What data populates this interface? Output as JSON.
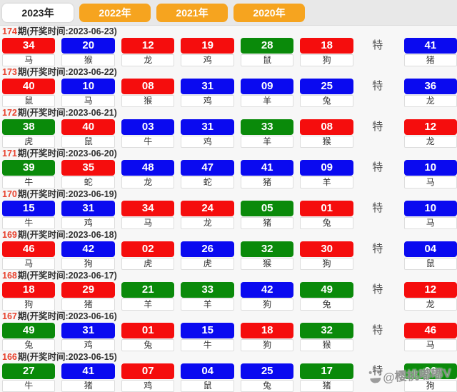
{
  "tabs": [
    {
      "label": "2023年",
      "active": true
    },
    {
      "label": "2022年",
      "active": false
    },
    {
      "label": "2021年",
      "active": false
    },
    {
      "label": "2020年",
      "active": false
    }
  ],
  "special_label": "特",
  "watermark": {
    "handle": "@樱桃嘟嘟V",
    "icon": "paw-icon"
  },
  "colors": {
    "red": "#f50d0d",
    "blue": "#0a0af0",
    "green": "#0a8a0a",
    "tab_orange": "#f6a41f",
    "period_red": "#e8432f"
  },
  "rows": [
    {
      "period": "174",
      "suffix": "期(开奖时间:2023-06-23)",
      "numbers": [
        {
          "num": "34",
          "zodiac": "马",
          "color": "red"
        },
        {
          "num": "20",
          "zodiac": "猴",
          "color": "blue"
        },
        {
          "num": "12",
          "zodiac": "龙",
          "color": "red"
        },
        {
          "num": "19",
          "zodiac": "鸡",
          "color": "red"
        },
        {
          "num": "28",
          "zodiac": "鼠",
          "color": "green"
        },
        {
          "num": "18",
          "zodiac": "狗",
          "color": "red"
        }
      ],
      "special": {
        "num": "41",
        "zodiac": "猪",
        "color": "blue"
      }
    },
    {
      "period": "173",
      "suffix": "期(开奖时间:2023-06-22)",
      "numbers": [
        {
          "num": "40",
          "zodiac": "鼠",
          "color": "red"
        },
        {
          "num": "10",
          "zodiac": "马",
          "color": "blue"
        },
        {
          "num": "08",
          "zodiac": "猴",
          "color": "red"
        },
        {
          "num": "31",
          "zodiac": "鸡",
          "color": "blue"
        },
        {
          "num": "09",
          "zodiac": "羊",
          "color": "blue"
        },
        {
          "num": "25",
          "zodiac": "兔",
          "color": "blue"
        }
      ],
      "special": {
        "num": "36",
        "zodiac": "龙",
        "color": "blue"
      }
    },
    {
      "period": "172",
      "suffix": "期(开奖时间:2023-06-21)",
      "numbers": [
        {
          "num": "38",
          "zodiac": "虎",
          "color": "green"
        },
        {
          "num": "40",
          "zodiac": "鼠",
          "color": "red"
        },
        {
          "num": "03",
          "zodiac": "牛",
          "color": "blue"
        },
        {
          "num": "31",
          "zodiac": "鸡",
          "color": "blue"
        },
        {
          "num": "33",
          "zodiac": "羊",
          "color": "green"
        },
        {
          "num": "08",
          "zodiac": "猴",
          "color": "red"
        }
      ],
      "special": {
        "num": "12",
        "zodiac": "龙",
        "color": "red"
      }
    },
    {
      "period": "171",
      "suffix": "期(开奖时间:2023-06-20)",
      "numbers": [
        {
          "num": "39",
          "zodiac": "牛",
          "color": "green"
        },
        {
          "num": "35",
          "zodiac": "蛇",
          "color": "red"
        },
        {
          "num": "48",
          "zodiac": "龙",
          "color": "blue"
        },
        {
          "num": "47",
          "zodiac": "蛇",
          "color": "blue"
        },
        {
          "num": "41",
          "zodiac": "猪",
          "color": "blue"
        },
        {
          "num": "09",
          "zodiac": "羊",
          "color": "blue"
        }
      ],
      "special": {
        "num": "10",
        "zodiac": "马",
        "color": "blue"
      }
    },
    {
      "period": "170",
      "suffix": "期(开奖时间:2023-06-19)",
      "numbers": [
        {
          "num": "15",
          "zodiac": "牛",
          "color": "blue"
        },
        {
          "num": "31",
          "zodiac": "鸡",
          "color": "blue"
        },
        {
          "num": "34",
          "zodiac": "马",
          "color": "red"
        },
        {
          "num": "24",
          "zodiac": "龙",
          "color": "red"
        },
        {
          "num": "05",
          "zodiac": "猪",
          "color": "green"
        },
        {
          "num": "01",
          "zodiac": "兔",
          "color": "red"
        }
      ],
      "special": {
        "num": "10",
        "zodiac": "马",
        "color": "blue"
      }
    },
    {
      "period": "169",
      "suffix": "期(开奖时间:2023-06-18)",
      "numbers": [
        {
          "num": "46",
          "zodiac": "马",
          "color": "red"
        },
        {
          "num": "42",
          "zodiac": "狗",
          "color": "blue"
        },
        {
          "num": "02",
          "zodiac": "虎",
          "color": "red"
        },
        {
          "num": "26",
          "zodiac": "虎",
          "color": "blue"
        },
        {
          "num": "32",
          "zodiac": "猴",
          "color": "green"
        },
        {
          "num": "30",
          "zodiac": "狗",
          "color": "red"
        }
      ],
      "special": {
        "num": "04",
        "zodiac": "鼠",
        "color": "blue"
      }
    },
    {
      "period": "168",
      "suffix": "期(开奖时间:2023-06-17)",
      "numbers": [
        {
          "num": "18",
          "zodiac": "狗",
          "color": "red"
        },
        {
          "num": "29",
          "zodiac": "猪",
          "color": "red"
        },
        {
          "num": "21",
          "zodiac": "羊",
          "color": "green"
        },
        {
          "num": "33",
          "zodiac": "羊",
          "color": "green"
        },
        {
          "num": "42",
          "zodiac": "狗",
          "color": "blue"
        },
        {
          "num": "49",
          "zodiac": "兔",
          "color": "green"
        }
      ],
      "special": {
        "num": "12",
        "zodiac": "龙",
        "color": "red"
      }
    },
    {
      "period": "167",
      "suffix": "期(开奖时间:2023-06-16)",
      "numbers": [
        {
          "num": "49",
          "zodiac": "兔",
          "color": "green"
        },
        {
          "num": "31",
          "zodiac": "鸡",
          "color": "blue"
        },
        {
          "num": "01",
          "zodiac": "兔",
          "color": "red"
        },
        {
          "num": "15",
          "zodiac": "牛",
          "color": "blue"
        },
        {
          "num": "18",
          "zodiac": "狗",
          "color": "red"
        },
        {
          "num": "32",
          "zodiac": "猴",
          "color": "green"
        }
      ],
      "special": {
        "num": "46",
        "zodiac": "马",
        "color": "red"
      }
    },
    {
      "period": "166",
      "suffix": "期(开奖时间:2023-06-15)",
      "numbers": [
        {
          "num": "27",
          "zodiac": "牛",
          "color": "green"
        },
        {
          "num": "41",
          "zodiac": "猪",
          "color": "blue"
        },
        {
          "num": "07",
          "zodiac": "鸡",
          "color": "red"
        },
        {
          "num": "04",
          "zodiac": "鼠",
          "color": "blue"
        },
        {
          "num": "25",
          "zodiac": "兔",
          "color": "blue"
        },
        {
          "num": "17",
          "zodiac": "猪",
          "color": "green"
        }
      ],
      "special": {
        "num": "06",
        "zodiac": "狗",
        "color": "green"
      }
    }
  ]
}
